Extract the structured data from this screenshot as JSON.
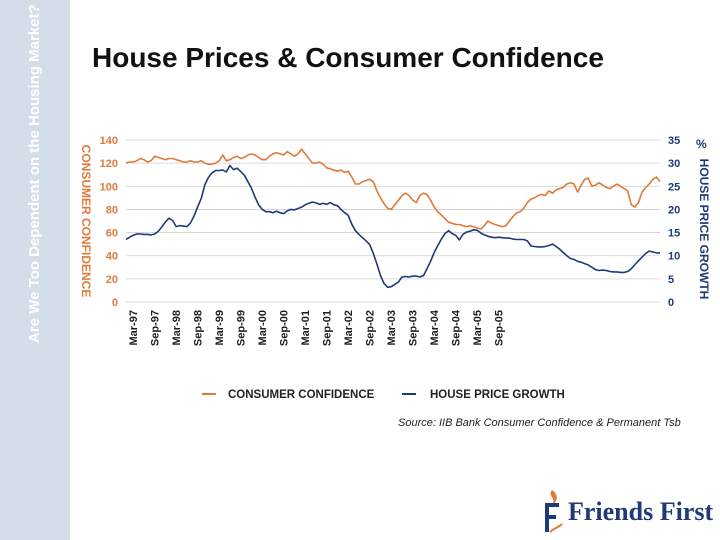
{
  "slide": {
    "sidebar_text": "Are We Too Dependent on the Housing Market?",
    "title": "House Prices & Consumer Confidence",
    "source": "Source: IIB Bank Consumer Confidence & Permanent Tsb"
  },
  "logo": {
    "text": "Friends First"
  },
  "colors": {
    "confidence": "#e07a3a",
    "growth": "#1f3a78",
    "sidebar": "#d3deea",
    "grid": "#cfcfcf"
  },
  "chart_data": {
    "type": "line",
    "title": "House Prices & Consumer Confidence",
    "left_axis_label": "CONSUMER CONFIDENCE",
    "right_axis_label": "HOUSE PRICE GROWTH",
    "right_unit": "%",
    "left_ylim": [
      0,
      140
    ],
    "left_ticks": [
      "0",
      "20",
      "40",
      "60",
      "80",
      "100",
      "120",
      "140"
    ],
    "right_ylim": [
      0,
      35
    ],
    "right_ticks": [
      "0",
      "5",
      "10",
      "15",
      "20",
      "25",
      "30",
      "35"
    ],
    "x_tick_labels": [
      "Mar-97",
      "Sep-97",
      "Mar-98",
      "Sep-98",
      "Mar-99",
      "Sep-99",
      "Mar-00",
      "Sep-00",
      "Mar-01",
      "Sep-01",
      "Mar-02",
      "Sep-02",
      "Mar-03",
      "Sep-03",
      "Mar-04",
      "Sep-04",
      "Mar-05",
      "Sep-05"
    ],
    "x_start": "Jan-97",
    "x_step": "1 month",
    "legend": [
      "CONSUMER CONFIDENCE",
      "HOUSE PRICE GROWTH"
    ],
    "grid": true,
    "series": [
      {
        "name": "CONSUMER CONFIDENCE",
        "axis": "left",
        "values": [
          120,
          121,
          121,
          122,
          124,
          123,
          121,
          122,
          126,
          125,
          124,
          123,
          124,
          124,
          123,
          122,
          121,
          121,
          122,
          121,
          121,
          122,
          120,
          119,
          119,
          120,
          122,
          127,
          122,
          123,
          125,
          126,
          124,
          125,
          127,
          128,
          127,
          125,
          123,
          123,
          126,
          128,
          129,
          128,
          127,
          130,
          128,
          126,
          128,
          132,
          128,
          124,
          120,
          120,
          121,
          119,
          116,
          115,
          114,
          113,
          114,
          112,
          113,
          108,
          102,
          102,
          104,
          105,
          106,
          104,
          96,
          90,
          85,
          81,
          80,
          84,
          88,
          92,
          94,
          92,
          88,
          86,
          92,
          94,
          93,
          88,
          82,
          78,
          75,
          72,
          69,
          68,
          67,
          67,
          66,
          65,
          66,
          65,
          64,
          63,
          66,
          70,
          68,
          67,
          66,
          65,
          66,
          70,
          74,
          77,
          78,
          81,
          86,
          89,
          90,
          92,
          93,
          92,
          96,
          94,
          97,
          98,
          99,
          102,
          103,
          102,
          95,
          101,
          106,
          107,
          100,
          101,
          103,
          101,
          99,
          98,
          100,
          102,
          100,
          98,
          96,
          84,
          82,
          86,
          95,
          99,
          102,
          106,
          108,
          104
        ]
      },
      {
        "name": "HOUSE PRICE GROWTH",
        "axis": "right",
        "values": [
          13.5,
          14,
          14.4,
          14.7,
          14.7,
          14.6,
          14.6,
          14.5,
          14.7,
          15.3,
          16.2,
          17.3,
          18.1,
          17.6,
          16.3,
          16.5,
          16.4,
          16.3,
          17.1,
          18.6,
          20.6,
          22.4,
          25.3,
          26.9,
          27.9,
          28.4,
          28.4,
          28.5,
          28.1,
          29.5,
          28.6,
          28.9,
          28.2,
          27.4,
          26,
          24.6,
          22.7,
          21,
          20,
          19.5,
          19.5,
          19.3,
          19.6,
          19.3,
          19.1,
          19.7,
          20,
          19.9,
          20.2,
          20.5,
          21,
          21.3,
          21.6,
          21.4,
          21.1,
          21.3,
          21.1,
          21.5,
          21,
          20.8,
          20,
          19.3,
          18.7,
          16.8,
          15.4,
          14.6,
          13.9,
          13.2,
          12.4,
          10.5,
          8.2,
          5.7,
          4,
          3.2,
          3.3,
          3.8,
          4.3,
          5.4,
          5.5,
          5.4,
          5.6,
          5.6,
          5.4,
          5.7,
          7.2,
          8.8,
          10.7,
          12.2,
          13.6,
          14.8,
          15.4,
          14.8,
          14.4,
          13.4,
          14.6,
          15.1,
          15.3,
          15.6,
          15.5,
          14.9,
          14.5,
          14.2,
          14,
          13.9,
          14,
          13.9,
          13.8,
          13.8,
          13.6,
          13.5,
          13.5,
          13.5,
          13.2,
          12.1,
          12,
          11.9,
          11.9,
          12,
          12.2,
          12.5,
          12,
          11.4,
          10.7,
          10,
          9.4,
          9.2,
          8.8,
          8.6,
          8.3,
          8,
          7.5,
          7,
          6.8,
          6.9,
          6.8,
          6.6,
          6.5,
          6.5,
          6.4,
          6.4,
          6.6,
          7.2,
          8.1,
          8.9,
          9.7,
          10.5,
          11,
          10.8,
          10.6,
          10.6
        ]
      }
    ]
  }
}
